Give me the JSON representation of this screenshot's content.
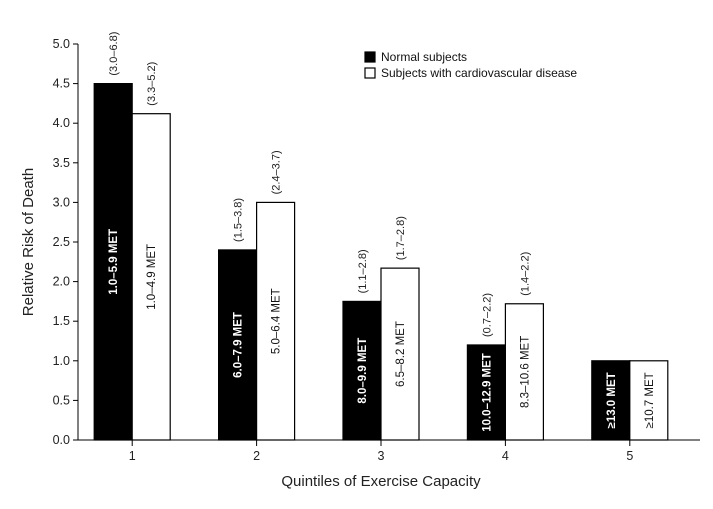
{
  "chart_data": {
    "type": "bar",
    "xlabel": "Quintiles of Exercise Capacity",
    "ylabel": "Relative Risk of Death",
    "ylim": [
      0,
      5.0
    ],
    "yticks": [
      "0.0",
      "0.5",
      "1.0",
      "1.5",
      "2.0",
      "2.5",
      "3.0",
      "3.5",
      "4.0",
      "4.5",
      "5.0"
    ],
    "categories": [
      "1",
      "2",
      "3",
      "4",
      "5"
    ],
    "legend_position": "top-right",
    "series": [
      {
        "name": "Normal subjects",
        "color": "#000000",
        "values": [
          4.5,
          2.4,
          1.75,
          1.2,
          1.0
        ],
        "ci_labels": [
          "(3.0–6.8)",
          "(1.5–3.8)",
          "(1.1–2.8)",
          "(0.7–2.2)",
          ""
        ],
        "met_labels": [
          "1.0–5.9 MET",
          "6.0–7.9 MET",
          "8.0–9.9 MET",
          "10.0–12.9 MET",
          "≥13.0 MET"
        ]
      },
      {
        "name": "Subjects with cardiovascular disease",
        "color": "#ffffff",
        "values": [
          4.12,
          3.0,
          2.17,
          1.72,
          1.0
        ],
        "ci_labels": [
          "(3.3–5.2)",
          "(2.4–3.7)",
          "(1.7–2.8)",
          "(1.4–2.2)",
          ""
        ],
        "met_labels": [
          "1.0–4.9 MET",
          "5.0–6.4 MET",
          "6.5–8.2 MET",
          "8.3–10.6 MET",
          "≥10.7 MET"
        ]
      }
    ]
  }
}
